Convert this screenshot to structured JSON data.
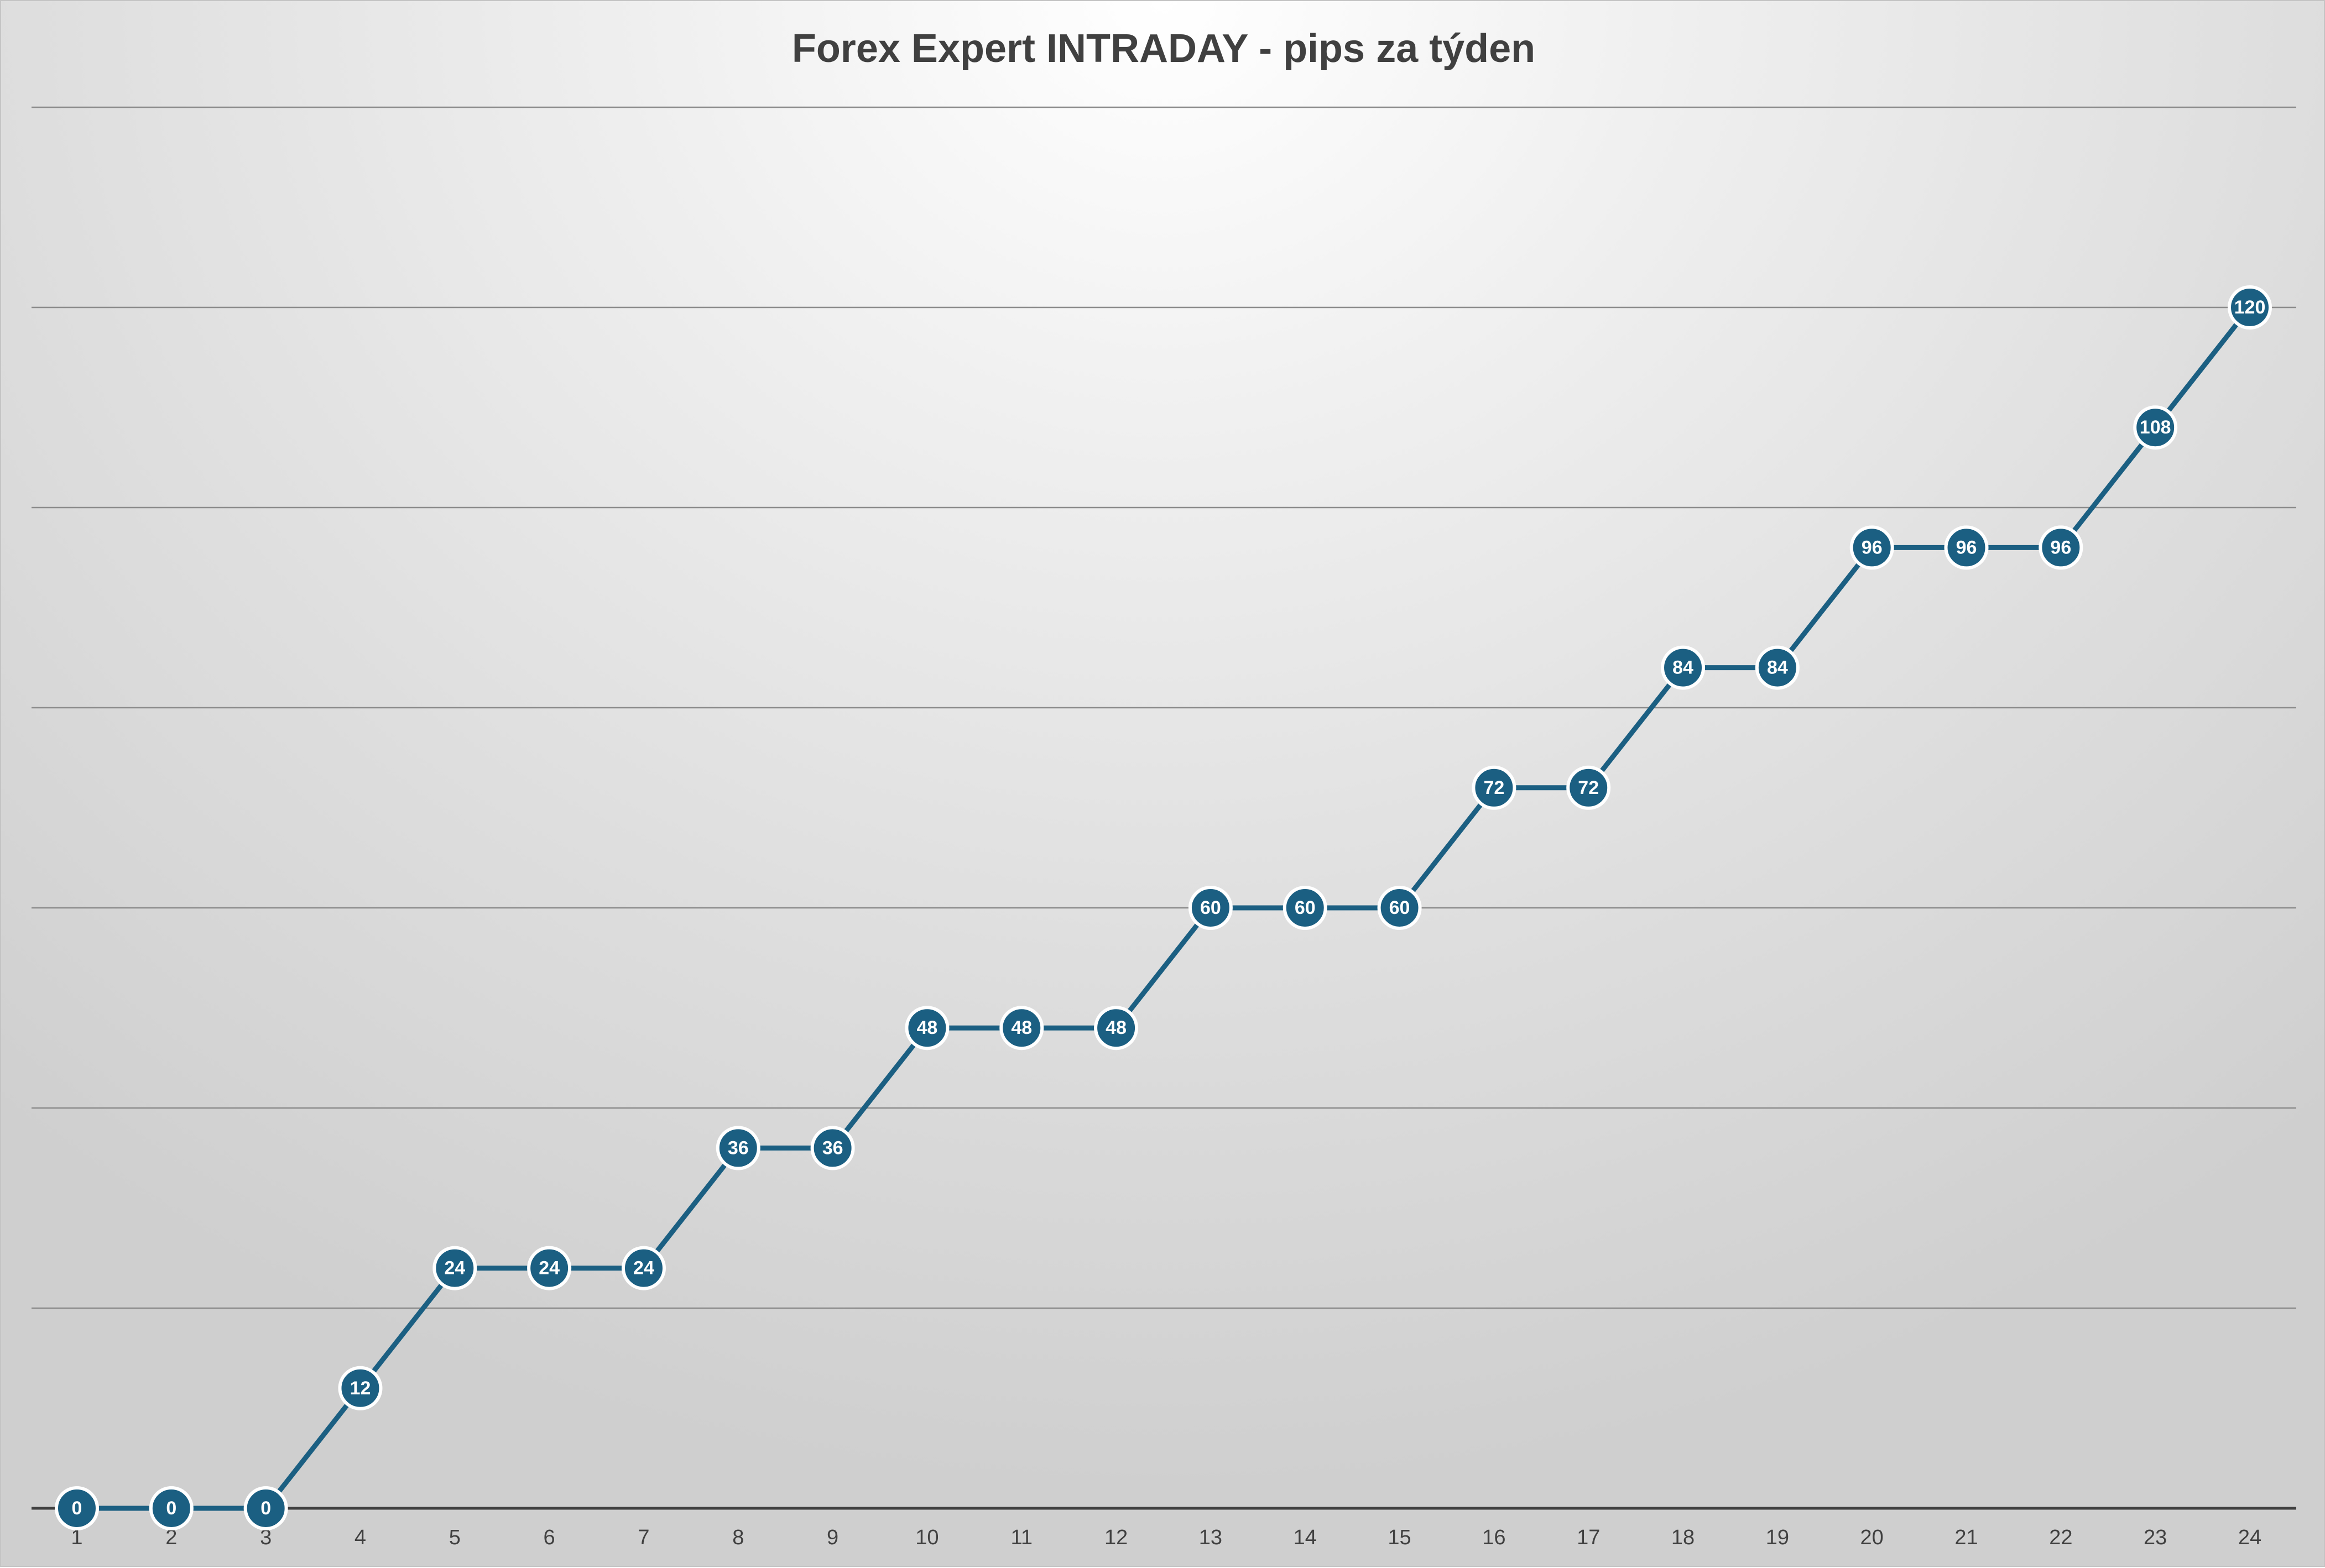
{
  "chart_data": {
    "type": "line",
    "title": "Forex Expert INTRADAY - pips za týden",
    "xlabel": "",
    "ylabel": "",
    "categories": [
      "1",
      "2",
      "3",
      "4",
      "5",
      "6",
      "7",
      "8",
      "9",
      "10",
      "11",
      "12",
      "13",
      "14",
      "15",
      "16",
      "17",
      "18",
      "19",
      "20",
      "21",
      "22",
      "23",
      "24"
    ],
    "series": [
      {
        "values": [
          0,
          0,
          0,
          12,
          24,
          24,
          24,
          36,
          36,
          48,
          48,
          48,
          60,
          60,
          60,
          72,
          72,
          84,
          84,
          96,
          96,
          96,
          108,
          120
        ]
      }
    ],
    "ylim": [
      0,
      140
    ],
    "y_grid_step": 20,
    "y_tick_labels_visible": false,
    "grid": true,
    "legend": "none",
    "data_labels": true,
    "colors": {
      "series": "#1b5f82",
      "marker_border": "#ffffff",
      "gridline": "#8c8c8c",
      "axis": "#404040",
      "title": "#404040"
    }
  }
}
